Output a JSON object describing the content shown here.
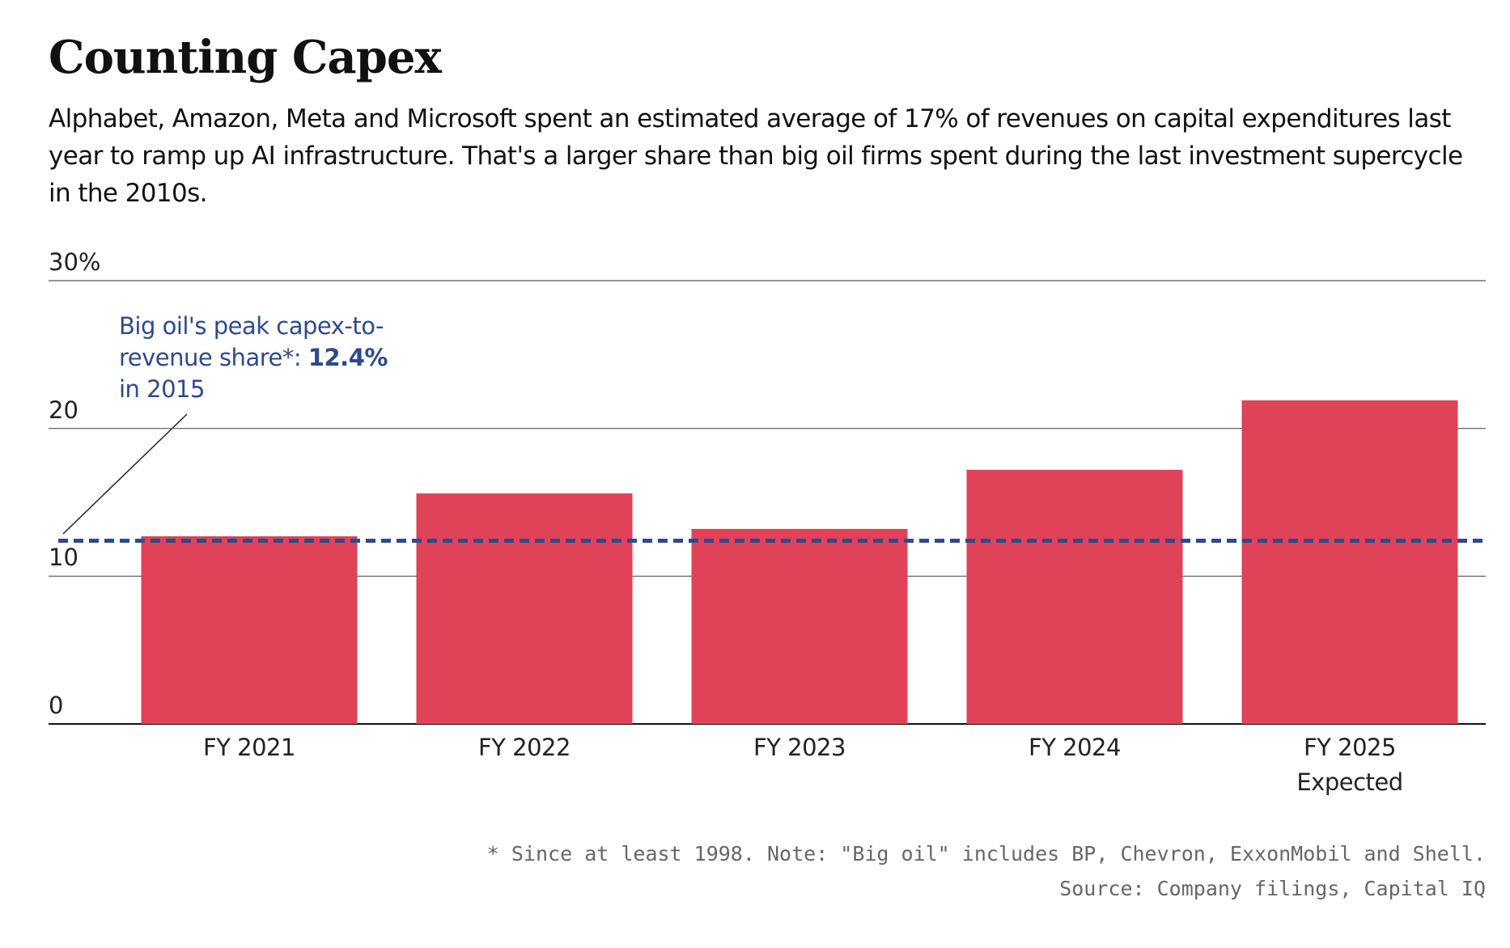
{
  "chart_data": {
    "type": "bar",
    "title": "Counting Capex",
    "subtitle": "Alphabet, Amazon, Meta and Microsoft spent an estimated average of 17% of revenues on capital expenditures last year to ramp up AI infrastructure. That's a larger share than big oil firms spent during the last investment supercycle in the 2010s.",
    "categories": [
      "FY 2021",
      "FY 2022",
      "FY 2023",
      "FY 2024",
      "FY 2025\nExpected"
    ],
    "values": [
      12.7,
      15.6,
      13.2,
      17.2,
      21.9
    ],
    "color": "#e04257",
    "ylim": [
      0,
      30
    ],
    "yticks": [
      0,
      10,
      20,
      {
        "value": 30,
        "label": "30%"
      }
    ],
    "grid": true,
    "reference_line": {
      "value": 12.4,
      "value_label": "12.4%",
      "color": "#2e4a8b",
      "label": "Big oil's peak capex-to-revenue share*:",
      "note": "in 2015"
    },
    "footnote": "* Since at least 1998. Note: \"Big oil\" includes BP, Chevron, ExxonMobil and Shell.",
    "source": "Source: Company filings, Capital IQ"
  }
}
